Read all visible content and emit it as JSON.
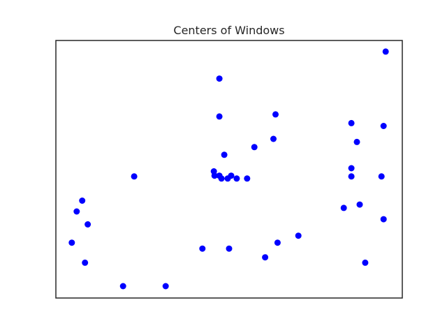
{
  "chart_data": {
    "type": "scatter",
    "title": "Centers of Windows",
    "xlabel": "",
    "ylabel": "",
    "xlim": [
      0,
      100
    ],
    "ylim": [
      0,
      100
    ],
    "grid": false,
    "ticks_visible": false,
    "marker_color": "#0000ff",
    "axes_color": "#262626",
    "background": "#ffffff",
    "series": [
      {
        "points": [
          [
            95.2,
            95.7
          ],
          [
            47.2,
            85.2
          ],
          [
            47.2,
            70.5
          ],
          [
            63.4,
            71.3
          ],
          [
            85.3,
            67.9
          ],
          [
            94.6,
            66.8
          ],
          [
            86.9,
            60.6
          ],
          [
            62.8,
            61.8
          ],
          [
            57.3,
            58.6
          ],
          [
            48.6,
            55.6
          ],
          [
            45.6,
            49.2
          ],
          [
            45.8,
            47.5
          ],
          [
            47.2,
            47.5
          ],
          [
            47.8,
            46.4
          ],
          [
            49.6,
            46.4
          ],
          [
            50.6,
            47.5
          ],
          [
            52.2,
            46.4
          ],
          [
            55.2,
            46.4
          ],
          [
            85.3,
            50.4
          ],
          [
            85.3,
            47.2
          ],
          [
            94.0,
            47.2
          ],
          [
            22.6,
            47.2
          ],
          [
            7.6,
            37.8
          ],
          [
            6.0,
            33.6
          ],
          [
            9.2,
            28.6
          ],
          [
            4.6,
            21.5
          ],
          [
            8.4,
            13.7
          ],
          [
            83.1,
            35.0
          ],
          [
            87.7,
            36.3
          ],
          [
            94.6,
            30.6
          ],
          [
            70.0,
            24.2
          ],
          [
            64.0,
            21.5
          ],
          [
            42.3,
            19.2
          ],
          [
            50.0,
            19.2
          ],
          [
            60.4,
            15.8
          ],
          [
            89.3,
            13.7
          ],
          [
            19.4,
            4.6
          ],
          [
            31.7,
            4.6
          ]
        ]
      }
    ]
  }
}
